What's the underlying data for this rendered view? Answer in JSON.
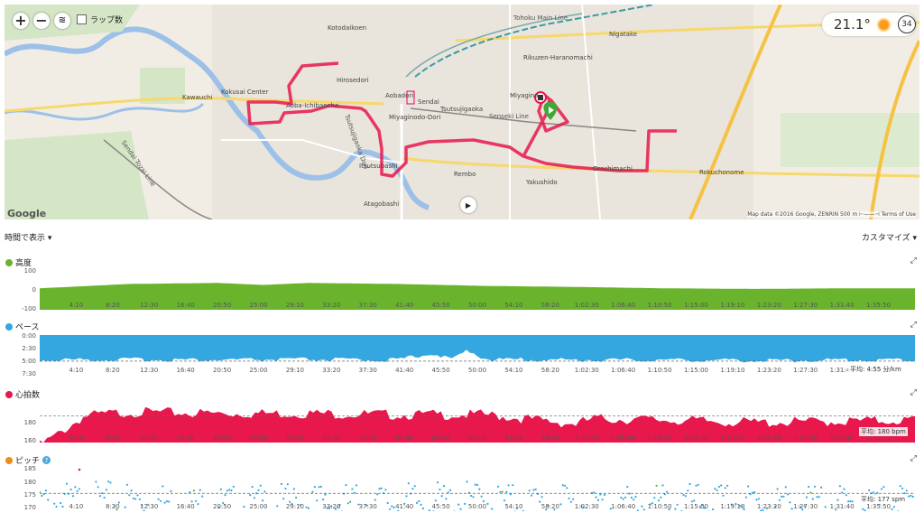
{
  "map": {
    "zoom_in_label": "+",
    "zoom_out_label": "−",
    "lap_toggle_label": "ラップ数",
    "weather": {
      "temperature": "21.1°",
      "badge": "34"
    },
    "google_label": "Google",
    "footer": "Map data ©2016 Google, ZENRIN   500 m ⊢——⊣   Terms of Use",
    "places": [
      "Kotodaikoen",
      "Hirosedori",
      "Aobadori",
      "Sendai",
      "Kawauchi",
      "Kokusai Center",
      "Aoba-Ichibancho",
      "Miyaginodo-Dori",
      "Tsutsujigaoka",
      "Miyagino",
      "Rikuzen-Haranomachi",
      "Nigatake",
      "Itsutsubashi",
      "Rembo",
      "Yakushido",
      "Oroshimachi",
      "Rokuchonome",
      "Atagobashi"
    ],
    "lines": [
      "Tohoku Main Line",
      "Senseki Line",
      "Sendai Tozai Line",
      "Tsutsujigaoka Dori"
    ]
  },
  "toolbar": {
    "view_by": "時間で表示 ▾",
    "customize": "カスタマイズ ▾"
  },
  "panels": {
    "elevation": {
      "title": "高度",
      "yticks": [
        "100",
        "0",
        "-100"
      ],
      "color": "#6ab42d"
    },
    "pace": {
      "title": "ペース",
      "yticks": [
        "0:00",
        "2:30",
        "5:00",
        "7:30"
      ],
      "avg": "平均: 4:55 分/km",
      "color": "#34a7e0"
    },
    "heart_rate": {
      "title": "心拍数",
      "yticks": [
        "180",
        "160"
      ],
      "avg": "平均: 180 bpm",
      "color": "#e8174c"
    },
    "cadence": {
      "title": "ピッチ",
      "help": "?",
      "yticks": [
        "185",
        "180",
        "175",
        "170"
      ],
      "avg": "平均: 177 spm",
      "color": "#f08a1c"
    }
  },
  "x_ticks": [
    "4:10",
    "8:20",
    "12:30",
    "16:40",
    "20:50",
    "25:00",
    "29:10",
    "33:20",
    "37:30",
    "41:40",
    "45:50",
    "50:00",
    "54:10",
    "58:20",
    "1:02:30",
    "1:06:40",
    "1:10:50",
    "1:15:00",
    "1:19:10",
    "1:23:20",
    "1:27:30",
    "1:31:40",
    "1:35:50"
  ],
  "chart_data": [
    {
      "type": "area",
      "title": "高度",
      "ylim": [
        -100,
        100
      ],
      "x_unit": "minutes",
      "x": [
        0,
        10,
        20,
        25,
        30,
        40,
        50,
        60,
        70,
        80,
        90,
        98
      ],
      "values": [
        8,
        30,
        35,
        25,
        35,
        30,
        20,
        15,
        8,
        5,
        8,
        8
      ]
    },
    {
      "type": "area",
      "title": "ペース",
      "ylim": [
        0,
        7.5
      ],
      "inverted": true,
      "avg": 4.92,
      "x": [
        0,
        10,
        20,
        30,
        40,
        44,
        46,
        48,
        50,
        60,
        70,
        80,
        90,
        98
      ],
      "values": [
        4.9,
        4.8,
        4.9,
        4.8,
        4.9,
        3.6,
        4.9,
        3.0,
        4.8,
        4.9,
        4.9,
        5.0,
        4.9,
        4.9
      ]
    },
    {
      "type": "area",
      "title": "心拍数",
      "ylim": [
        160,
        190
      ],
      "avg": 180,
      "x": [
        0,
        2,
        5,
        10,
        20,
        30,
        40,
        50,
        60,
        62,
        70,
        80,
        90,
        98
      ],
      "values": [
        160,
        168,
        182,
        185,
        184,
        184,
        183,
        183,
        176,
        180,
        179,
        177,
        178,
        179
      ]
    },
    {
      "type": "scatter",
      "title": "ピッチ",
      "ylim": [
        170,
        187
      ],
      "avg": 177,
      "x": [
        0,
        10,
        20,
        30,
        40,
        50,
        60,
        70,
        80,
        90,
        98
      ],
      "values": [
        177,
        178,
        176,
        177,
        177,
        178,
        176,
        177,
        177,
        176,
        177
      ]
    }
  ]
}
